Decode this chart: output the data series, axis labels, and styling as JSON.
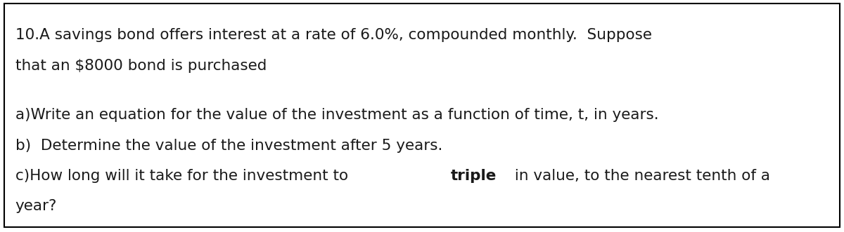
{
  "bg_color": "#ffffff",
  "border_color": "#000000",
  "border_linewidth": 1.5,
  "font_size": 15.5,
  "font_color": "#1a1a1a",
  "line1": "10.A savings bond offers interest at a rate of 6.0%, compounded monthly.  Suppose",
  "line2": "that an $8000 bond is purchased",
  "line4": "a)Write an equation for the value of the investment as a function of time, t, in years.",
  "line5": "b)  Determine the value of the investment after 5 years.",
  "line6_before_bold": "c)How long will it take for the investment to ",
  "line6_bold": "triple",
  "line6_after_bold": " in value, to the nearest tenth of a",
  "line7": "year?",
  "figsize": [
    12.0,
    3.31
  ],
  "dpi": 100
}
